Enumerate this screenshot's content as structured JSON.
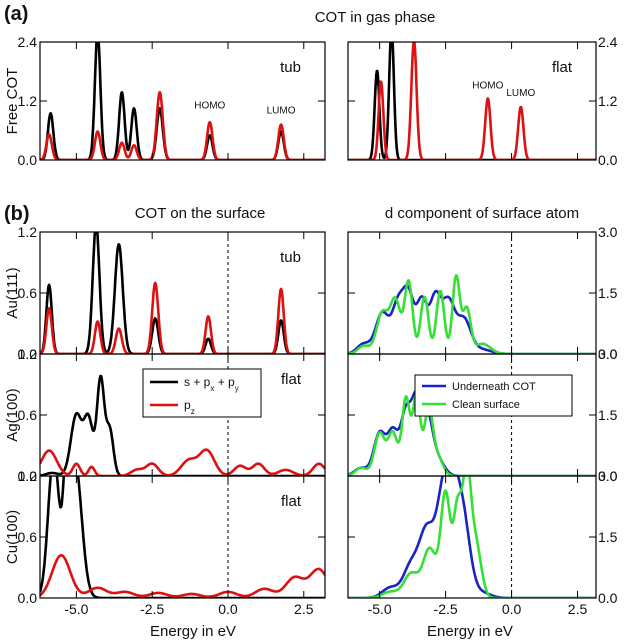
{
  "figure": {
    "panel_a_label": "(a)",
    "panel_a_title": "COT in gas phase",
    "panel_b_label": "(b)",
    "panel_b_left_title": "COT on the surface",
    "panel_b_right_title": "d component of surface atom",
    "x_axis_label": "Energy in eV",
    "homo_label": "HOMO",
    "lumo_label": "LUMO",
    "legend_left": {
      "s_label": "s + p",
      "sx": "x",
      "plus": " + p",
      "sy": "y",
      "pz_label": "p",
      "pz_sub": "z"
    },
    "legend_right": {
      "under": "Underneath COT",
      "clean": "Clean surface"
    },
    "colors": {
      "black": "#000000",
      "red": "#dd1111",
      "blue": "#1a22c8",
      "green": "#33e033"
    }
  },
  "chart_data": [
    {
      "id": "a-left",
      "type": "line",
      "ylabel": "Free COT",
      "panel_text": "tub",
      "xlim": [
        -6.2,
        3.2
      ],
      "ylim": [
        0,
        2.4
      ],
      "yticks": [
        "0.0",
        "1.2",
        "2.4"
      ],
      "xticks": [],
      "annotations": [
        "HOMO",
        "LUMO"
      ],
      "series": [
        {
          "name": "s + px + py",
          "color": "black",
          "peaks": [
            [
              -5.85,
              0.95,
              0.09
            ],
            [
              -4.3,
              2.6,
              0.09
            ],
            [
              -3.5,
              1.38,
              0.09
            ],
            [
              -3.1,
              1.05,
              0.09
            ],
            [
              -2.25,
              1.05,
              0.1
            ],
            [
              -0.6,
              0.5,
              0.09
            ],
            [
              1.75,
              0.58,
              0.09
            ]
          ]
        },
        {
          "name": "pz",
          "color": "red",
          "peaks": [
            [
              -5.9,
              0.52,
              0.09
            ],
            [
              -4.3,
              0.58,
              0.09
            ],
            [
              -3.5,
              0.35,
              0.09
            ],
            [
              -3.1,
              0.3,
              0.09
            ],
            [
              -2.25,
              1.38,
              0.1
            ],
            [
              -0.6,
              0.77,
              0.09
            ],
            [
              1.75,
              0.72,
              0.09
            ]
          ]
        }
      ]
    },
    {
      "id": "a-right",
      "type": "line",
      "ylabel": "",
      "panel_text": "flat",
      "xlim": [
        -6.2,
        3.2
      ],
      "ylim": [
        0,
        2.4
      ],
      "yticks": [
        "0.0",
        "1.2",
        "2.4"
      ],
      "xticks": [],
      "annotations": [
        "HOMO",
        "LUMO"
      ],
      "series": [
        {
          "name": "s + px + py",
          "color": "black",
          "peaks": [
            [
              -5.1,
              1.82,
              0.09
            ],
            [
              -4.55,
              2.7,
              0.09
            ]
          ]
        },
        {
          "name": "pz",
          "color": "red",
          "peaks": [
            [
              -4.95,
              1.6,
              0.09
            ],
            [
              -3.7,
              2.42,
              0.1
            ],
            [
              -0.9,
              1.25,
              0.1
            ],
            [
              0.35,
              1.08,
              0.1
            ]
          ]
        }
      ]
    },
    {
      "id": "b-au-left",
      "type": "line",
      "ylabel": "Au(111)",
      "panel_text": "tub",
      "xlim": [
        -6.2,
        3.2
      ],
      "ylim": [
        0,
        1.2
      ],
      "yticks": [
        "0.0",
        "0.6",
        "1.2"
      ],
      "xticks": [],
      "fermi_line": 0,
      "series": [
        {
          "name": "s + px + py",
          "color": "black",
          "peaks": [
            [
              -5.9,
              0.68,
              0.09
            ],
            [
              -4.35,
              1.28,
              0.11
            ],
            [
              -3.6,
              1.08,
              0.13
            ],
            [
              -2.4,
              0.35,
              0.1
            ],
            [
              -0.65,
              0.15,
              0.09
            ],
            [
              1.75,
              0.33,
              0.09
            ]
          ]
        },
        {
          "name": "pz",
          "color": "red",
          "peaks": [
            [
              -5.9,
              0.45,
              0.09
            ],
            [
              -4.3,
              0.32,
              0.09
            ],
            [
              -3.6,
              0.25,
              0.1
            ],
            [
              -2.4,
              0.7,
              0.1
            ],
            [
              -0.65,
              0.37,
              0.09
            ],
            [
              1.75,
              0.64,
              0.09
            ]
          ]
        }
      ]
    },
    {
      "id": "b-ag-left",
      "type": "line",
      "ylabel": "Ag(100)",
      "panel_text": "flat",
      "xlim": [
        -6.2,
        3.2
      ],
      "ylim": [
        0,
        1.2
      ],
      "yticks": [
        "0.0",
        "0.6",
        "1.2"
      ],
      "xticks": [],
      "series": [
        {
          "name": "s + px + py",
          "color": "black",
          "peaks": [
            [
              -5.8,
              0.03,
              0.2
            ],
            [
              -5.0,
              0.6,
              0.18
            ],
            [
              -4.6,
              0.55,
              0.15
            ],
            [
              -4.2,
              0.95,
              0.12
            ],
            [
              -3.9,
              0.45,
              0.12
            ]
          ]
        },
        {
          "name": "pz",
          "color": "red",
          "peaks": [
            [
              -5.9,
              0.25,
              0.25
            ],
            [
              -5.0,
              0.12,
              0.12
            ],
            [
              -4.5,
              0.09,
              0.1
            ],
            [
              -3.0,
              0.06,
              0.2
            ],
            [
              -2.5,
              0.12,
              0.2
            ],
            [
              -1.3,
              0.15,
              0.25
            ],
            [
              -0.7,
              0.25,
              0.25
            ],
            [
              0.4,
              0.1,
              0.2
            ],
            [
              1.0,
              0.12,
              0.2
            ],
            [
              1.9,
              0.06,
              0.25
            ],
            [
              3.0,
              0.12,
              0.2
            ]
          ]
        }
      ]
    },
    {
      "id": "b-cu-left",
      "type": "line",
      "ylabel": "Cu(100)",
      "panel_text": "flat",
      "xlim": [
        -6.2,
        3.2
      ],
      "ylim": [
        0,
        1.2
      ],
      "yticks": [
        "0.0",
        "0.6",
        "1.2"
      ],
      "xticks": [
        "-5.0",
        "-2.5",
        "0.0",
        "2.5"
      ],
      "series": [
        {
          "name": "s + px + py",
          "color": "black",
          "peaks": [
            [
              -5.75,
              1.4,
              0.18
            ],
            [
              -5.35,
              0.8,
              0.09
            ],
            [
              -5.05,
              1.35,
              0.22
            ]
          ]
        },
        {
          "name": "pz",
          "color": "red",
          "peaks": [
            [
              -5.5,
              0.42,
              0.3
            ],
            [
              -4.3,
              0.1,
              0.3
            ],
            [
              -3.4,
              0.06,
              0.3
            ],
            [
              -2.3,
              0.05,
              0.3
            ],
            [
              -1.2,
              0.04,
              0.3
            ],
            [
              0.0,
              0.06,
              0.3
            ],
            [
              1.2,
              0.09,
              0.3
            ],
            [
              2.2,
              0.2,
              0.3
            ],
            [
              3.0,
              0.28,
              0.3
            ]
          ]
        }
      ]
    },
    {
      "id": "b-au-right",
      "type": "line",
      "ylabel": "",
      "panel_text": "",
      "xlim": [
        -6.2,
        3.2
      ],
      "ylim": [
        0,
        3.0
      ],
      "yticks": [
        "0.0",
        "1.5",
        "3.0"
      ],
      "xticks": [],
      "fermi_line": 0,
      "series": [
        {
          "name": "Underneath COT",
          "color": "blue",
          "peaks": [
            [
              -5.6,
              0.25,
              0.25
            ],
            [
              -4.9,
              1.0,
              0.25
            ],
            [
              -4.3,
              1.2,
              0.22
            ],
            [
              -3.9,
              1.35,
              0.2
            ],
            [
              -3.4,
              1.3,
              0.2
            ],
            [
              -2.9,
              1.3,
              0.2
            ],
            [
              -2.4,
              1.3,
              0.25
            ],
            [
              -1.8,
              0.8,
              0.25
            ],
            [
              -1.2,
              0.12,
              0.4
            ]
          ]
        },
        {
          "name": "Clean surface",
          "color": "green",
          "peaks": [
            [
              -5.6,
              0.2,
              0.22
            ],
            [
              -4.9,
              1.0,
              0.22
            ],
            [
              -4.4,
              1.3,
              0.2
            ],
            [
              -3.9,
              1.75,
              0.15
            ],
            [
              -3.3,
              1.4,
              0.15
            ],
            [
              -2.7,
              1.55,
              0.15
            ],
            [
              -2.1,
              1.9,
              0.14
            ],
            [
              -1.7,
              1.1,
              0.15
            ],
            [
              -1.1,
              0.25,
              0.3
            ]
          ]
        }
      ]
    },
    {
      "id": "b-ag-right",
      "type": "line",
      "ylabel": "",
      "panel_text": "",
      "xlim": [
        -6.2,
        3.2
      ],
      "ylim": [
        0,
        3.0
      ],
      "yticks": [
        "0.0",
        "1.5",
        "3.0"
      ],
      "xticks": [],
      "series": [
        {
          "name": "Underneath COT",
          "color": "blue",
          "peaks": [
            [
              -5.7,
              0.2,
              0.25
            ],
            [
              -5.0,
              1.05,
              0.22
            ],
            [
              -4.5,
              1.05,
              0.2
            ],
            [
              -4.0,
              1.55,
              0.2
            ],
            [
              -3.6,
              1.7,
              0.18
            ],
            [
              -3.2,
              1.4,
              0.2
            ],
            [
              -2.8,
              0.4,
              0.25
            ]
          ]
        },
        {
          "name": "Clean surface",
          "color": "green",
          "peaks": [
            [
              -5.7,
              0.2,
              0.22
            ],
            [
              -5.0,
              1.05,
              0.2
            ],
            [
              -4.5,
              1.05,
              0.18
            ],
            [
              -4.0,
              1.9,
              0.15
            ],
            [
              -3.6,
              1.95,
              0.14
            ],
            [
              -3.15,
              1.6,
              0.16
            ],
            [
              -2.8,
              0.45,
              0.2
            ]
          ]
        }
      ]
    },
    {
      "id": "b-cu-right",
      "type": "line",
      "ylabel": "",
      "panel_text": "",
      "xlim": [
        -6.2,
        3.2
      ],
      "ylim": [
        0,
        3.0
      ],
      "yticks": [
        "0.0",
        "1.5",
        "3.0"
      ],
      "xticks": [
        "-5.0",
        "-2.5",
        "0.0",
        "2.5"
      ],
      "series": [
        {
          "name": "Underneath COT",
          "color": "blue",
          "peaks": [
            [
              -4.6,
              0.25,
              0.3
            ],
            [
              -3.8,
              0.8,
              0.3
            ],
            [
              -3.2,
              1.6,
              0.28
            ],
            [
              -2.6,
              2.25,
              0.25
            ],
            [
              -2.2,
              2.25,
              0.25
            ],
            [
              -1.8,
              1.6,
              0.25
            ],
            [
              -1.2,
              0.15,
              0.35
            ]
          ]
        },
        {
          "name": "Clean surface",
          "color": "green",
          "peaks": [
            [
              -4.6,
              0.15,
              0.3
            ],
            [
              -3.8,
              0.6,
              0.28
            ],
            [
              -3.1,
              1.2,
              0.25
            ],
            [
              -2.5,
              2.55,
              0.18
            ],
            [
              -2.05,
              2.1,
              0.15
            ],
            [
              -1.7,
              2.95,
              0.16
            ],
            [
              -1.35,
              1.3,
              0.2
            ]
          ]
        }
      ]
    }
  ]
}
